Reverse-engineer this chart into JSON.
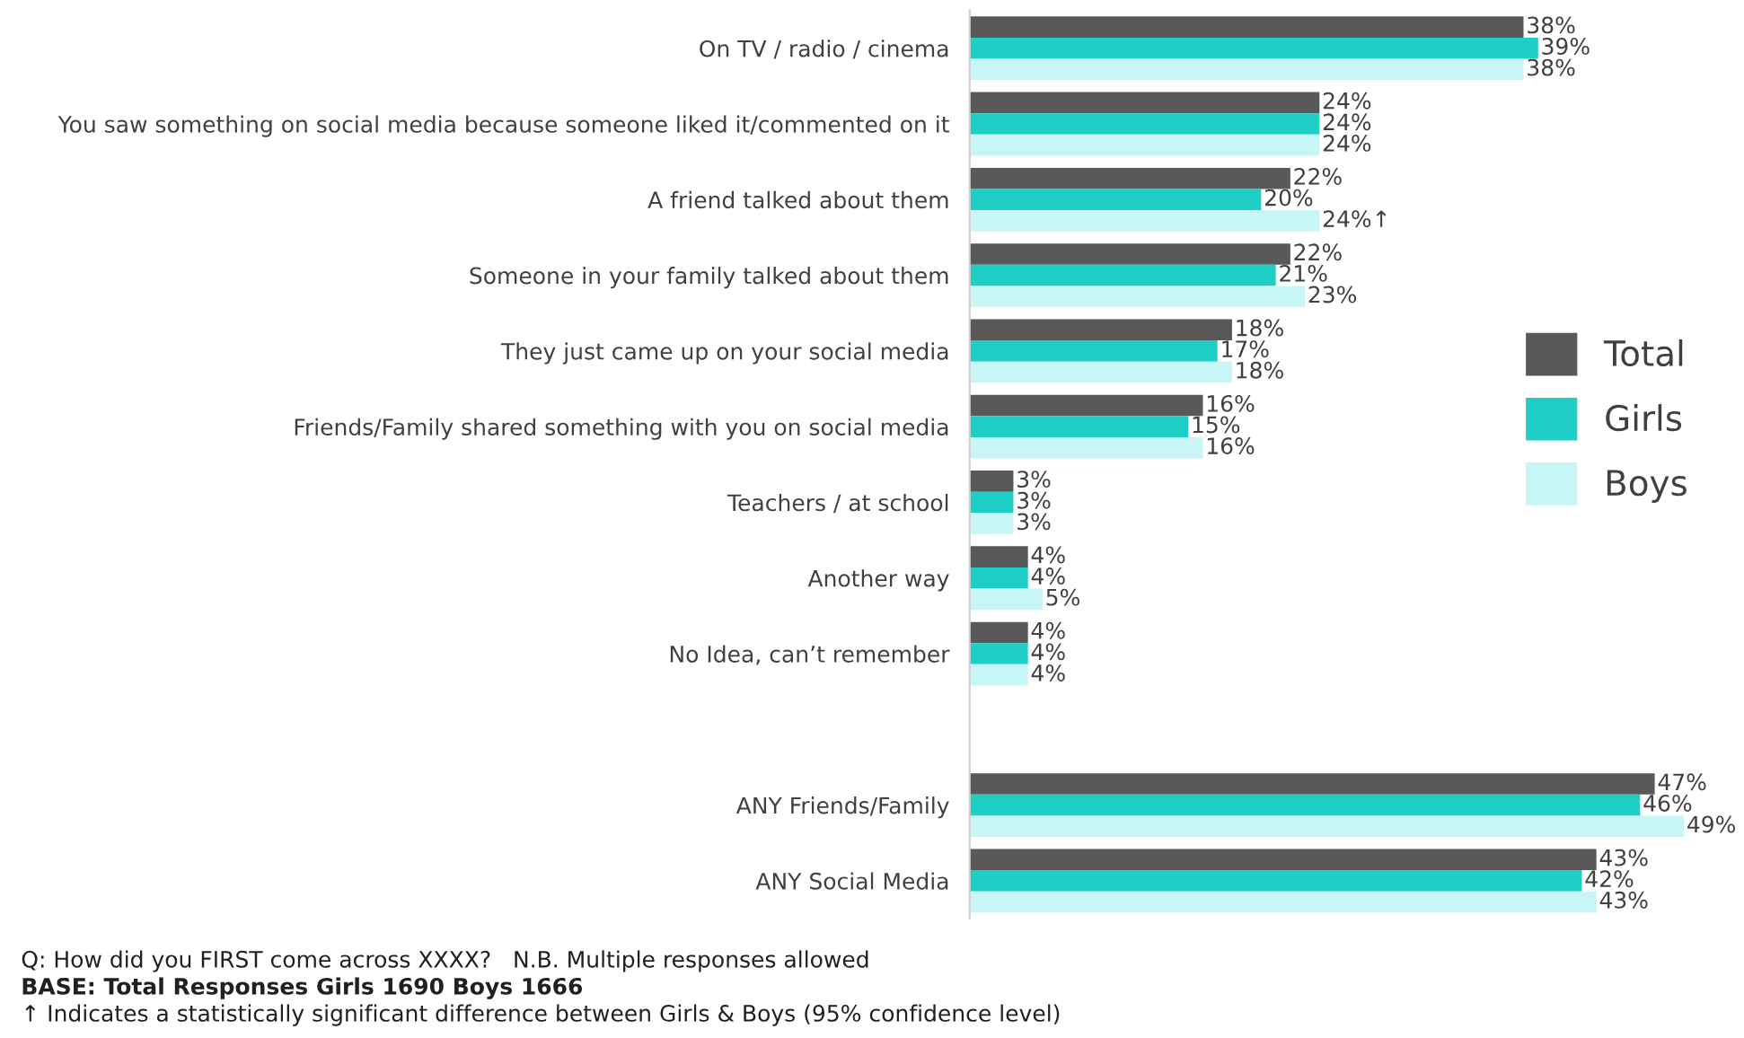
{
  "chart_data": {
    "type": "bar",
    "orientation": "horizontal",
    "categories": [
      "On TV / radio / cinema",
      "You saw something on social media because someone liked it/commented on it",
      "A friend talked about them",
      "Someone in your family talked about them",
      "They just came up on your social media",
      "Friends/Family shared something with you on social media",
      "Teachers / at school",
      "Another way",
      "No Idea, can’t remember",
      null,
      "ANY Friends/Family",
      "ANY Social Media"
    ],
    "series": [
      {
        "name": "Total",
        "color": "#595959",
        "values": [
          38,
          24,
          22,
          22,
          18,
          16,
          3,
          4,
          4,
          null,
          47,
          43
        ],
        "value_labels": [
          "38%",
          "24%",
          "22%",
          "22%",
          "18%",
          "16%",
          "3%",
          "4%",
          "4%",
          null,
          "47%",
          "43%"
        ]
      },
      {
        "name": "Girls",
        "color": "#1fcfc6",
        "values": [
          39,
          24,
          20,
          21,
          17,
          15,
          3,
          4,
          4,
          null,
          46,
          42
        ],
        "value_labels": [
          "39%",
          "24%",
          "20%",
          "21%",
          "17%",
          "15%",
          "3%",
          "4%",
          "4%",
          null,
          "46%",
          "42%"
        ]
      },
      {
        "name": "Boys",
        "color": "#c8f5f5",
        "values": [
          38,
          24,
          24,
          23,
          18,
          16,
          3,
          5,
          4,
          null,
          49,
          43
        ],
        "value_labels": [
          "38%",
          "24%",
          "24%↑",
          "23%",
          "18%",
          "16%",
          "3%",
          "5%",
          "4%",
          null,
          "49%",
          "43%"
        ]
      }
    ],
    "legend": "right",
    "grid": false,
    "annotations": [
      "Q: How did you FIRST come across XXXX?   N.B. Multiple responses allowed",
      "BASE: Total Responses Girls 1690 Boys 1666",
      "↑ Indicates a statistically significant difference between Girls & Boys (95% confidence level)"
    ]
  }
}
